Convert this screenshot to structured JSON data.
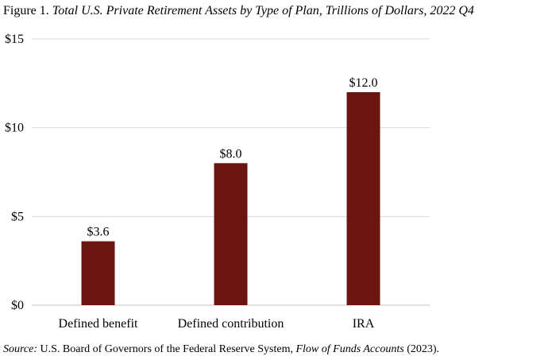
{
  "figure": {
    "label": "Figure 1. ",
    "title": "Total U.S. Private Retirement Assets by Type of Plan, Trillions of Dollars, 2022 Q4"
  },
  "source": {
    "label": "Source:",
    "text_before": " U.S. Board of Governors of the Federal Reserve System, ",
    "publication": "Flow of Funds Accounts",
    "text_after": " (2023)."
  },
  "chart_data": {
    "type": "bar",
    "categories": [
      "Defined benefit",
      "Defined contribution",
      "IRA"
    ],
    "values": [
      3.6,
      8.0,
      12.0
    ],
    "value_labels": [
      "$3.6",
      "$8.0",
      "$12.0"
    ],
    "ylim": [
      0,
      15
    ],
    "yticks": [
      0,
      5,
      10,
      15
    ],
    "ytick_labels": [
      "$0",
      "$5",
      "$10",
      "$15"
    ],
    "grid": true,
    "bar_color": "#6b1510",
    "grid_color": "#d9d9d9",
    "axis_color": "#bfbfbf"
  }
}
